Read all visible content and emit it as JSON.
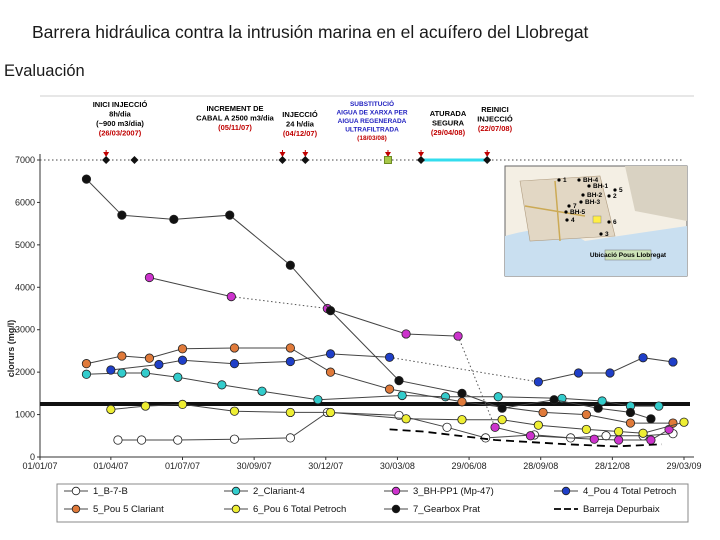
{
  "slide": {
    "title": "Barrera hidráulica contra la intrusión marina en el acuífero del Llobregat",
    "subtitle": "Evaluación"
  },
  "annotations": [
    {
      "lines": [
        "INICI INJECCIÓ",
        "8h/dia",
        "(~900 m3/dia)",
        "(26/03/2007)"
      ],
      "colors": [
        "#000",
        "#000",
        "#000",
        "#c00000"
      ],
      "x": "2007-03-26"
    },
    {
      "lines": [
        "INCREMENT DE",
        "CABAL A 2500 m3/dia",
        "(05/11/07)"
      ],
      "colors": [
        "#000",
        "#000",
        "#c00000"
      ],
      "x": "2007-11-05"
    },
    {
      "lines": [
        "INJECCIÓ",
        "24 h/dia",
        "(04/12/07)"
      ],
      "colors": [
        "#000",
        "#000",
        "#c00000"
      ],
      "x": "2007-12-04"
    },
    {
      "lines": [
        "SUBSTITUCIÓ",
        "AIGUA DE XARXA PER",
        "AIGUA REGENERADA",
        "ULTRAFILTRADA",
        "(18/03/08)"
      ],
      "colors": [
        "#2020c0",
        "#2020c0",
        "#2020c0",
        "#2020c0",
        "#c00000"
      ],
      "x": "2008-03-18"
    },
    {
      "lines": [
        "ATURADA",
        "SEGURA",
        "(29/04/08)"
      ],
      "colors": [
        "#000",
        "#000",
        "#c00000"
      ],
      "x": "2008-04-29"
    },
    {
      "lines": [
        "REINICI",
        "INJECCIÓ",
        "(22/07/08)"
      ],
      "colors": [
        "#000",
        "#000",
        "#c00000"
      ],
      "x": "2008-07-22"
    }
  ],
  "map": {
    "labels": [
      "BH-1",
      "BH-2",
      "BH-3",
      "BH-4",
      "BH-5",
      "1",
      "2",
      "3",
      "4",
      "5",
      "6",
      "7"
    ],
    "caption": "Ubicació Pous Llobregat"
  },
  "chart_data": {
    "type": "line",
    "ylabel": "clorurs (mg/l)",
    "xlabel": "",
    "ylim": [
      0,
      7000
    ],
    "yticks": [
      0,
      1000,
      2000,
      3000,
      4000,
      5000,
      6000,
      7000
    ],
    "xlim": [
      "2007-01-01",
      "2009-03-29"
    ],
    "xticks": [
      "01/01/07",
      "01/04/07",
      "01/07/07",
      "30/09/07",
      "30/12/07",
      "30/03/08",
      "29/06/08",
      "28/09/08",
      "28/12/08",
      "29/03/09"
    ],
    "reference_line": 1250,
    "event_markers": {
      "dates": [
        "2007-03-26",
        "2007-05-01",
        "2007-11-05",
        "2007-12-04",
        "2008-03-18",
        "2008-04-29",
        "2008-07-22"
      ],
      "green_marker_date": "2008-03-18",
      "cyan_segment": [
        "2008-04-29",
        "2008-07-22"
      ]
    },
    "series": [
      {
        "name": "1_B-7-B",
        "color": "#ffffff",
        "points": [
          [
            "2007-04-10",
            400
          ],
          [
            "2007-05-10",
            400
          ],
          [
            "2007-06-25",
            400
          ],
          [
            "2007-09-05",
            420
          ],
          [
            "2007-11-15",
            450
          ],
          [
            "2008-01-01",
            1050
          ],
          [
            "2008-04-01",
            980
          ],
          [
            "2008-06-01",
            700
          ],
          [
            "2008-07-20",
            450
          ],
          [
            "2008-09-20",
            520
          ],
          [
            "2008-11-05",
            450
          ],
          [
            "2008-12-20",
            500
          ],
          [
            "2009-02-05",
            500
          ],
          [
            "2009-03-15",
            550
          ]
        ]
      },
      {
        "name": "2_Clariant-4",
        "color": "#33cccc",
        "points": [
          [
            "2007-03-01",
            1950
          ],
          [
            "2007-04-15",
            1980
          ],
          [
            "2007-05-15",
            1980
          ],
          [
            "2007-06-25",
            1880
          ],
          [
            "2007-08-20",
            1700
          ],
          [
            "2007-10-10",
            1550
          ],
          [
            "2007-12-20",
            1350
          ],
          [
            "2008-04-05",
            1450
          ],
          [
            "2008-05-30",
            1420
          ],
          [
            "2008-08-05",
            1420
          ],
          [
            "2008-10-25",
            1380
          ],
          [
            "2008-12-15",
            1320
          ],
          [
            "2009-01-20",
            1200
          ],
          [
            "2009-02-25",
            1200
          ]
        ]
      },
      {
        "name": "3_BH-PP1 (Mp-47)",
        "color": "#cc33cc",
        "points": [
          [
            "2007-05-20",
            4230
          ],
          [
            "2007-09-01",
            3780
          ],
          null,
          [
            "2008-01-01",
            3500
          ],
          [
            "2008-04-10",
            2900
          ],
          [
            "2008-06-15",
            2850
          ],
          null,
          [
            "2008-08-01",
            700
          ],
          [
            "2008-09-15",
            500
          ],
          [
            "2008-12-05",
            420
          ],
          [
            "2009-01-05",
            400
          ],
          [
            "2009-02-15",
            400
          ],
          [
            "2009-03-10",
            650
          ]
        ]
      },
      {
        "name": "4_Pou 4 Total Petroch",
        "color": "#1f3fc8",
        "points": [
          [
            "2007-04-01",
            2050
          ],
          [
            "2007-06-01",
            2180
          ],
          [
            "2007-07-01",
            2280
          ],
          [
            "2007-09-05",
            2200
          ],
          [
            "2007-11-15",
            2250
          ],
          [
            "2008-01-05",
            2430
          ],
          [
            "2008-03-20",
            2350
          ],
          [
            "2008-08-25",
            null
          ],
          [
            "2008-09-25",
            1770
          ],
          [
            "2008-11-15",
            1980
          ],
          [
            "2008-12-25",
            1980
          ],
          [
            "2009-02-05",
            2340
          ],
          [
            "2009-03-15",
            2240
          ]
        ]
      },
      {
        "name": "5_Pou 5 Clariant",
        "color": "#e07a3a",
        "points": [
          [
            "2007-03-01",
            2200
          ],
          [
            "2007-04-15",
            2380
          ],
          [
            "2007-05-20",
            2330
          ],
          [
            "2007-07-01",
            2550
          ],
          [
            "2007-09-05",
            2570
          ],
          [
            "2007-11-15",
            2570
          ],
          [
            "2008-01-05",
            2000
          ],
          [
            "2008-03-20",
            1600
          ],
          [
            "2008-06-20",
            1300
          ],
          [
            "2008-10-01",
            1050
          ],
          [
            "2008-11-25",
            1000
          ],
          [
            "2009-01-20",
            800
          ],
          [
            "2009-03-15",
            800
          ]
        ]
      },
      {
        "name": "6_Pou 6 Total Petroch",
        "color": "#eeee33",
        "points": [
          [
            "2007-04-01",
            1120
          ],
          [
            "2007-05-15",
            1200
          ],
          [
            "2007-07-01",
            1240
          ],
          [
            "2007-09-05",
            1080
          ],
          [
            "2007-11-15",
            1050
          ],
          [
            "2008-01-05",
            1050
          ],
          [
            "2008-04-10",
            900
          ],
          [
            "2008-06-20",
            880
          ],
          [
            "2008-08-10",
            880
          ],
          [
            "2008-09-25",
            750
          ],
          [
            "2008-11-25",
            650
          ],
          [
            "2009-01-05",
            600
          ],
          [
            "2009-02-05",
            560
          ],
          [
            "2009-03-29",
            820
          ]
        ]
      },
      {
        "name": "7_Gearbox Prat",
        "color": "#111111",
        "points": [
          [
            "2007-03-01",
            6550
          ],
          [
            "2007-04-15",
            5700
          ],
          [
            "2007-06-20",
            5600
          ],
          [
            "2007-08-30",
            5700
          ],
          [
            "2007-11-15",
            4520
          ],
          [
            "2008-01-05",
            3450
          ],
          [
            "2008-04-01",
            1800
          ],
          [
            "2008-06-20",
            1500
          ],
          [
            "2008-08-10",
            1150
          ],
          [
            "2008-10-15",
            1350
          ],
          [
            "2008-12-10",
            1150
          ],
          [
            "2009-01-20",
            1050
          ],
          [
            "2009-02-15",
            900
          ]
        ]
      },
      {
        "name": "Barreja Depurbaix",
        "color": "#000000",
        "dashed": true,
        "points": [
          [
            "2008-03-20",
            650
          ],
          [
            "2008-05-01",
            600
          ],
          [
            "2008-08-01",
            400
          ],
          [
            "2008-11-01",
            300
          ],
          [
            "2009-01-01",
            250
          ],
          [
            "2009-03-01",
            300
          ]
        ]
      }
    ]
  }
}
